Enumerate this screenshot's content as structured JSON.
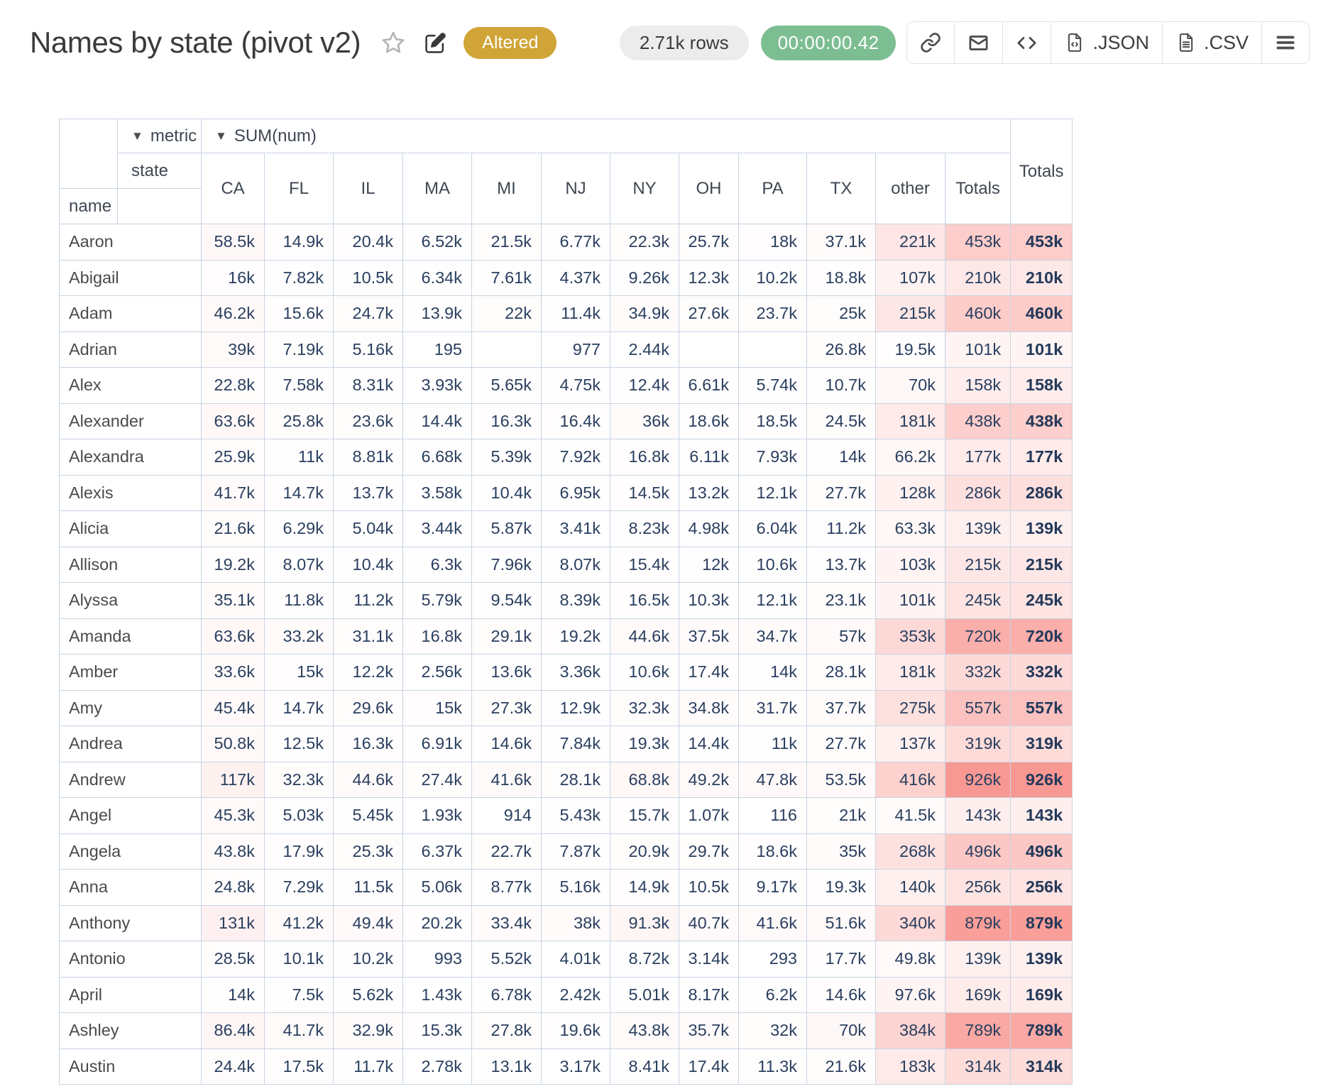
{
  "header": {
    "title": "Names by state (pivot v2)",
    "status_badge": "Altered",
    "rows_pill": "2.71k rows",
    "runtime_pill": "00:00:00.42",
    "json_label": ".JSON",
    "csv_label": ".CSV",
    "icons": {
      "star": "star-outline",
      "edit": "pencil-square",
      "link": "chain-link",
      "mail": "envelope",
      "code": "code-brackets",
      "json_file": "file-code",
      "csv_file": "file-lines",
      "menu": "hamburger"
    }
  },
  "colors": {
    "badge_gold": "#d0a437",
    "runtime_green": "#7cbe92",
    "table_border": "#c8d4e3",
    "cell_text": "#2a3f5f",
    "heat_rgb": "244,86,77"
  },
  "pivot": {
    "dropdown_glyph": "▼",
    "metric_label": "metric",
    "metric_value": "SUM(num)",
    "col_attr": "state",
    "row_attr": "name",
    "totals_label": "Totals",
    "col_totals_label": "Totals",
    "columns": [
      "CA",
      "FL",
      "IL",
      "MA",
      "MI",
      "NJ",
      "NY",
      "OH",
      "PA",
      "TX",
      "other"
    ],
    "rows": [
      {
        "name": "Aaron",
        "values": [
          "58.5k",
          "14.9k",
          "20.4k",
          "6.52k",
          "21.5k",
          "6.77k",
          "22.3k",
          "25.7k",
          "18k",
          "37.1k",
          "221k"
        ],
        "total": "453k"
      },
      {
        "name": "Abigail",
        "values": [
          "16k",
          "7.82k",
          "10.5k",
          "6.34k",
          "7.61k",
          "4.37k",
          "9.26k",
          "12.3k",
          "10.2k",
          "18.8k",
          "107k"
        ],
        "total": "210k"
      },
      {
        "name": "Adam",
        "values": [
          "46.2k",
          "15.6k",
          "24.7k",
          "13.9k",
          "22k",
          "11.4k",
          "34.9k",
          "27.6k",
          "23.7k",
          "25k",
          "215k"
        ],
        "total": "460k"
      },
      {
        "name": "Adrian",
        "values": [
          "39k",
          "7.19k",
          "5.16k",
          "195",
          "",
          "977",
          "2.44k",
          "",
          "",
          "26.8k",
          "19.5k"
        ],
        "total": "101k"
      },
      {
        "name": "Alex",
        "values": [
          "22.8k",
          "7.58k",
          "8.31k",
          "3.93k",
          "5.65k",
          "4.75k",
          "12.4k",
          "6.61k",
          "5.74k",
          "10.7k",
          "70k"
        ],
        "total": "158k"
      },
      {
        "name": "Alexander",
        "values": [
          "63.6k",
          "25.8k",
          "23.6k",
          "14.4k",
          "16.3k",
          "16.4k",
          "36k",
          "18.6k",
          "18.5k",
          "24.5k",
          "181k"
        ],
        "total": "438k"
      },
      {
        "name": "Alexandra",
        "values": [
          "25.9k",
          "11k",
          "8.81k",
          "6.68k",
          "5.39k",
          "7.92k",
          "16.8k",
          "6.11k",
          "7.93k",
          "14k",
          "66.2k"
        ],
        "total": "177k"
      },
      {
        "name": "Alexis",
        "values": [
          "41.7k",
          "14.7k",
          "13.7k",
          "3.58k",
          "10.4k",
          "6.95k",
          "14.5k",
          "13.2k",
          "12.1k",
          "27.7k",
          "128k"
        ],
        "total": "286k"
      },
      {
        "name": "Alicia",
        "values": [
          "21.6k",
          "6.29k",
          "5.04k",
          "3.44k",
          "5.87k",
          "3.41k",
          "8.23k",
          "4.98k",
          "6.04k",
          "11.2k",
          "63.3k"
        ],
        "total": "139k"
      },
      {
        "name": "Allison",
        "values": [
          "19.2k",
          "8.07k",
          "10.4k",
          "6.3k",
          "7.96k",
          "8.07k",
          "15.4k",
          "12k",
          "10.6k",
          "13.7k",
          "103k"
        ],
        "total": "215k"
      },
      {
        "name": "Alyssa",
        "values": [
          "35.1k",
          "11.8k",
          "11.2k",
          "5.79k",
          "9.54k",
          "8.39k",
          "16.5k",
          "10.3k",
          "12.1k",
          "23.1k",
          "101k"
        ],
        "total": "245k"
      },
      {
        "name": "Amanda",
        "values": [
          "63.6k",
          "33.2k",
          "31.1k",
          "16.8k",
          "29.1k",
          "19.2k",
          "44.6k",
          "37.5k",
          "34.7k",
          "57k",
          "353k"
        ],
        "total": "720k"
      },
      {
        "name": "Amber",
        "values": [
          "33.6k",
          "15k",
          "12.2k",
          "2.56k",
          "13.6k",
          "3.36k",
          "10.6k",
          "17.4k",
          "14k",
          "28.1k",
          "181k"
        ],
        "total": "332k"
      },
      {
        "name": "Amy",
        "values": [
          "45.4k",
          "14.7k",
          "29.6k",
          "15k",
          "27.3k",
          "12.9k",
          "32.3k",
          "34.8k",
          "31.7k",
          "37.7k",
          "275k"
        ],
        "total": "557k"
      },
      {
        "name": "Andrea",
        "values": [
          "50.8k",
          "12.5k",
          "16.3k",
          "6.91k",
          "14.6k",
          "7.84k",
          "19.3k",
          "14.4k",
          "11k",
          "27.7k",
          "137k"
        ],
        "total": "319k"
      },
      {
        "name": "Andrew",
        "values": [
          "117k",
          "32.3k",
          "44.6k",
          "27.4k",
          "41.6k",
          "28.1k",
          "68.8k",
          "49.2k",
          "47.8k",
          "53.5k",
          "416k"
        ],
        "total": "926k"
      },
      {
        "name": "Angel",
        "values": [
          "45.3k",
          "5.03k",
          "5.45k",
          "1.93k",
          "914",
          "5.43k",
          "15.7k",
          "1.07k",
          "116",
          "21k",
          "41.5k"
        ],
        "total": "143k"
      },
      {
        "name": "Angela",
        "values": [
          "43.8k",
          "17.9k",
          "25.3k",
          "6.37k",
          "22.7k",
          "7.87k",
          "20.9k",
          "29.7k",
          "18.6k",
          "35k",
          "268k"
        ],
        "total": "496k"
      },
      {
        "name": "Anna",
        "values": [
          "24.8k",
          "7.29k",
          "11.5k",
          "5.06k",
          "8.77k",
          "5.16k",
          "14.9k",
          "10.5k",
          "9.17k",
          "19.3k",
          "140k"
        ],
        "total": "256k"
      },
      {
        "name": "Anthony",
        "values": [
          "131k",
          "41.2k",
          "49.4k",
          "20.2k",
          "33.4k",
          "38k",
          "91.3k",
          "40.7k",
          "41.6k",
          "51.6k",
          "340k"
        ],
        "total": "879k"
      },
      {
        "name": "Antonio",
        "values": [
          "28.5k",
          "10.1k",
          "10.2k",
          "993",
          "5.52k",
          "4.01k",
          "8.72k",
          "3.14k",
          "293",
          "17.7k",
          "49.8k"
        ],
        "total": "139k"
      },
      {
        "name": "April",
        "values": [
          "14k",
          "7.5k",
          "5.62k",
          "1.43k",
          "6.78k",
          "2.42k",
          "5.01k",
          "8.17k",
          "6.2k",
          "14.6k",
          "97.6k"
        ],
        "total": "169k"
      },
      {
        "name": "Ashley",
        "values": [
          "86.4k",
          "41.7k",
          "32.9k",
          "15.3k",
          "27.8k",
          "19.6k",
          "43.8k",
          "35.7k",
          "32k",
          "70k",
          "384k"
        ],
        "total": "789k"
      },
      {
        "name": "Austin",
        "values": [
          "24.4k",
          "17.5k",
          "11.7k",
          "2.78k",
          "13.1k",
          "3.17k",
          "8.41k",
          "17.4k",
          "11.3k",
          "21.6k",
          "183k"
        ],
        "total": "314k"
      }
    ]
  }
}
